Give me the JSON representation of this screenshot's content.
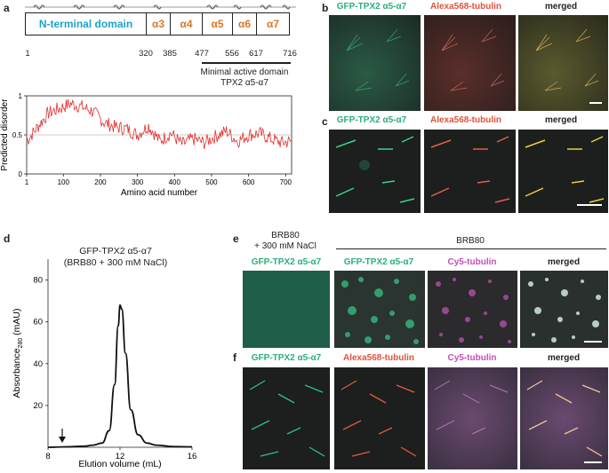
{
  "panels": {
    "a": "a",
    "b": "b",
    "c": "c",
    "d": "d",
    "e": "e",
    "f": "f"
  },
  "panel_a": {
    "domains": [
      {
        "label": "N-terminal domain",
        "color": "#1aa3c8"
      },
      {
        "label": "α3",
        "color": "#d9782a"
      },
      {
        "label": "α4",
        "color": "#d9782a"
      },
      {
        "label": "α5",
        "color": "#d9782a"
      },
      {
        "label": "α6",
        "color": "#d9782a"
      },
      {
        "label": "α7",
        "color": "#d9782a"
      }
    ],
    "positions": [
      "1",
      "320",
      "385",
      "477",
      "556",
      "617",
      "716"
    ],
    "active_label_1": "Minimal active domain",
    "active_label_2": "TPX2 α5-α7"
  },
  "disorder_plot": {
    "ylabel": "Predicted disorder",
    "xlabel": "Amino acid number",
    "yticks": [
      "0",
      "0.5",
      "1"
    ],
    "xticks": [
      "1",
      "100",
      "200",
      "300",
      "400",
      "500",
      "600",
      "700"
    ]
  },
  "panel_b": {
    "headers": [
      "GFP-TPX2 α5-α7",
      "Alexa568-tubulin",
      "merged"
    ]
  },
  "panel_c": {
    "headers": [
      "GFP-TPX2 α5-α7",
      "Alexa568-tubulin",
      "merged"
    ]
  },
  "panel_d": {
    "title_1": "GFP-TPX2 α5-α7",
    "title_2": "(BRB80 + 300 mM NaCl)",
    "ylabel": "Absorbance",
    "ylabel_sub": "280",
    "ylabel_unit": " (mAU)",
    "xlabel": "Elution volume (mL)",
    "yticks": [
      "20",
      "40",
      "60",
      "80"
    ],
    "xticks": [
      "8",
      "12",
      "16"
    ]
  },
  "panel_e": {
    "cond_1_line1": "BRB80",
    "cond_1_line2": "+ 300 mM NaCl",
    "cond_2": "BRB80",
    "headers": [
      "GFP-TPX2 α5-α7",
      "GFP-TPX2 α5-α7",
      "Cy5-tubulin",
      "merged"
    ]
  },
  "panel_f": {
    "headers": [
      "GFP-TPX2 α5-α7",
      "Alexa568-tubulin",
      "Cy5-tubulin",
      "merged"
    ]
  },
  "chart_data": [
    {
      "type": "line",
      "title": "",
      "xlabel": "Amino acid number",
      "ylabel": "Predicted disorder",
      "xlim": [
        1,
        716
      ],
      "ylim": [
        0,
        1
      ],
      "series": [
        {
          "x": [
            1,
            30,
            60,
            90,
            120,
            150,
            180,
            210,
            240,
            270,
            300,
            330,
            360,
            390,
            420,
            450,
            480,
            510,
            540,
            570,
            600,
            630,
            660,
            690,
            716
          ],
          "values": [
            0.42,
            0.6,
            0.78,
            0.84,
            0.9,
            0.86,
            0.8,
            0.66,
            0.6,
            0.58,
            0.5,
            0.62,
            0.42,
            0.52,
            0.38,
            0.45,
            0.4,
            0.48,
            0.55,
            0.42,
            0.5,
            0.52,
            0.45,
            0.4,
            0.42
          ]
        }
      ]
    },
    {
      "type": "line",
      "title": "",
      "xlabel": "Elution volume (mL)",
      "ylabel": "Absorbance280 (mAU)",
      "xlim": [
        8,
        16
      ],
      "ylim": [
        0,
        90
      ],
      "series": [
        {
          "x": [
            8.0,
            9.0,
            10.0,
            10.5,
            11.0,
            11.4,
            11.7,
            11.9,
            12.0,
            12.1,
            12.3,
            12.6,
            13.0,
            13.5,
            14.0,
            15.0,
            16.0
          ],
          "values": [
            0,
            0.2,
            0.5,
            1.0,
            2.0,
            8.0,
            30.0,
            58.0,
            68.0,
            66.0,
            45.0,
            18.0,
            6.0,
            2.0,
            1.0,
            0.3,
            0.2
          ]
        }
      ]
    }
  ]
}
